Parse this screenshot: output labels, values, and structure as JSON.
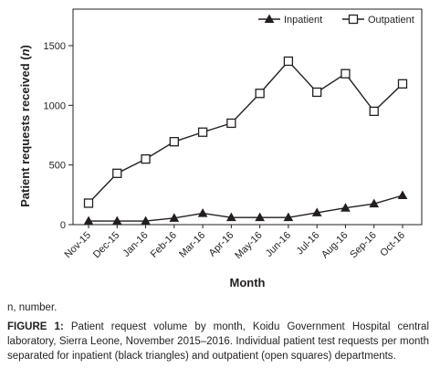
{
  "chart_data": {
    "type": "line",
    "title": "",
    "xlabel": "Month",
    "ylabel": "Patient requests received (n)",
    "ylabel_main": "Patient requests received (",
    "ylabel_var": "n",
    "ylabel_close": ")",
    "categories": [
      "Nov-15",
      "Dec-15",
      "Jan-16",
      "Feb-16",
      "Mar-16",
      "Apr-16",
      "May-16",
      "Jun-16",
      "Jul-16",
      "Aug-16",
      "Sep-16",
      "Oct-16"
    ],
    "ylim": [
      0,
      1500
    ],
    "yticks": [
      0,
      500,
      1000,
      1500
    ],
    "grid": false,
    "legend_position": "top-right",
    "series": [
      {
        "name": "Inpatient",
        "marker": "filled-triangle",
        "color": "#231f20",
        "values": [
          30,
          30,
          30,
          55,
          95,
          60,
          60,
          60,
          100,
          140,
          175,
          245
        ]
      },
      {
        "name": "Outpatient",
        "marker": "open-square",
        "color": "#231f20",
        "values": [
          180,
          430,
          550,
          695,
          775,
          850,
          1100,
          1370,
          1110,
          1265,
          950,
          1180
        ]
      }
    ]
  },
  "footnote": "n, number.",
  "caption": {
    "label": "FIGURE 1:",
    "text": " Patient request volume by month, Koidu Government Hospital central laboratory, Sierra Leone, November 2015–2016. Individual patient test requests per month separated for inpatient (black triangles) and outpatient (open squares) departments."
  }
}
